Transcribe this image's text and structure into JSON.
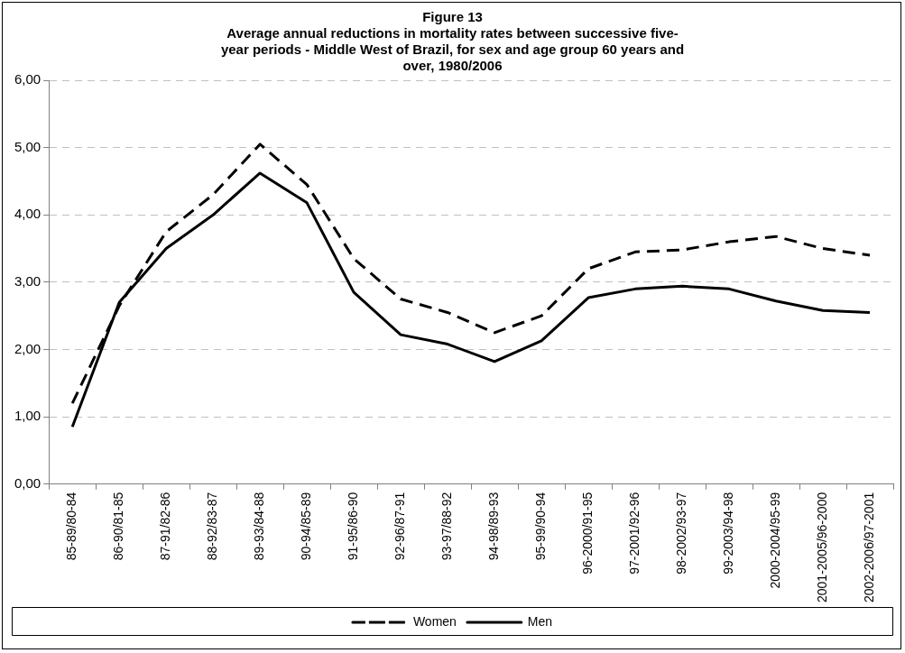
{
  "chart_data": {
    "type": "line",
    "title": [
      "Figure 13",
      "Average annual reductions in mortality rates between successive five-",
      "year periods - Middle West of Brazil, for sex and age group 60 years and",
      "over, 1980/2006"
    ],
    "categories": [
      "85-89/80-84",
      "86-90/81-85",
      "87-91/82-86",
      "88-92/83-87",
      "89-93/84-88",
      "90-94/85-89",
      "91-95/86-90",
      "92-96/87-91",
      "93-97/88-92",
      "94-98/89-93",
      "95-99/90-94",
      "96-2000/91-95",
      "97-2001/92-96",
      "98-2002/93-97",
      "99-2003/94-98",
      "2000-2004/95-99",
      "2001-2005/96-2000",
      "2002-2006/97-2001"
    ],
    "series": [
      {
        "name": "Women",
        "color": "#000000",
        "line_style": "dashed",
        "values": [
          1.2,
          2.65,
          3.75,
          4.3,
          5.05,
          4.45,
          3.35,
          2.75,
          2.55,
          2.25,
          2.5,
          3.2,
          3.45,
          3.48,
          3.6,
          3.68,
          3.5,
          3.4
        ]
      },
      {
        "name": "Men",
        "color": "#000000",
        "line_style": "solid",
        "values": [
          0.85,
          2.7,
          3.5,
          4.0,
          4.62,
          4.18,
          2.85,
          2.22,
          2.08,
          1.82,
          2.13,
          2.77,
          2.9,
          2.94,
          2.9,
          2.72,
          2.58,
          2.55
        ]
      }
    ],
    "ylim": [
      0,
      6
    ],
    "yticks": [
      {
        "value": 0,
        "label": "0,00"
      },
      {
        "value": 1,
        "label": "1,00"
      },
      {
        "value": 2,
        "label": "2,00"
      },
      {
        "value": 3,
        "label": "3,00"
      },
      {
        "value": 4,
        "label": "4,00"
      },
      {
        "value": 5,
        "label": "5,00"
      },
      {
        "value": 6,
        "label": "6,00"
      }
    ],
    "grid": "y",
    "legend": "bottom",
    "marker": "none"
  }
}
